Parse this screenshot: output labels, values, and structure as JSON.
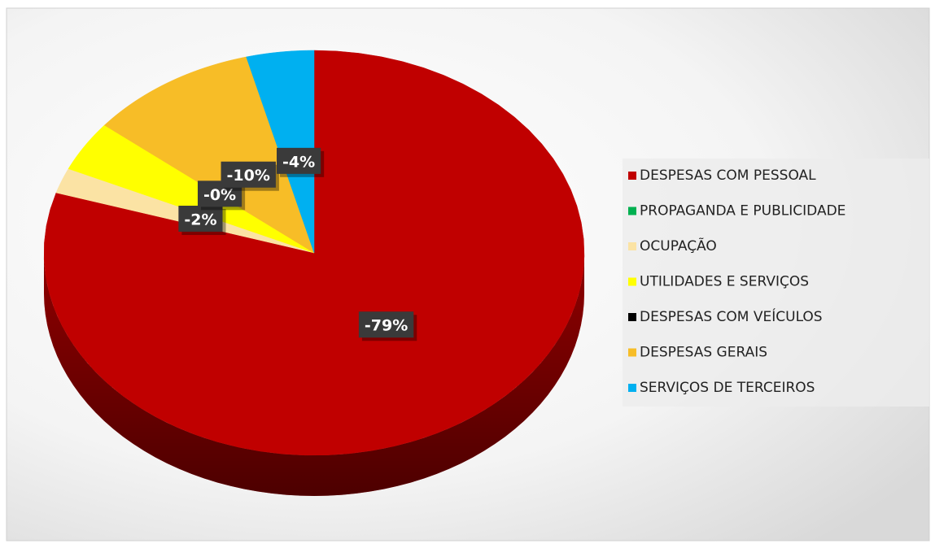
{
  "chart_data": {
    "type": "pie",
    "categories": [
      "DESPESAS COM PESSOAL",
      "PROPAGANDA E PUBLICIDADE",
      "OCUPAÇÃO",
      "UTILIDADES E SERVIÇOS",
      "DESPESAS COM VEÍCULOS",
      "DESPESAS GERAIS",
      "SERVIÇOS DE TERCEIROS"
    ],
    "values": [
      -79,
      0,
      -2,
      -4,
      0,
      -10,
      -4
    ],
    "value_labels": [
      "-79%",
      null,
      "-2%",
      null,
      "-0%",
      "-10%",
      "-4%"
    ],
    "colors": [
      "#c00000",
      "#00b050",
      "#fbe3a4",
      "#ffff00",
      "#000000",
      "#f7bd27",
      "#00b0f0"
    ],
    "legend": "right"
  }
}
